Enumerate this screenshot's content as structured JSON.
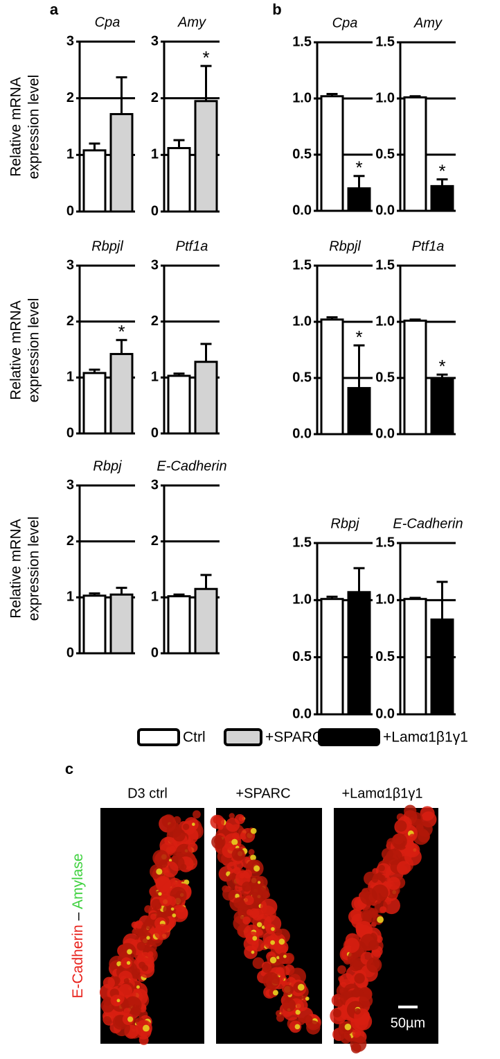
{
  "panel_labels": [
    "a",
    "b",
    "c"
  ],
  "ylabel": [
    "Relative mRNA",
    "expression level"
  ],
  "chart_data": [
    {
      "type": "bar",
      "title": "Cpa",
      "values": [
        1.08,
        1.72
      ],
      "errors": [
        0.12,
        0.65
      ],
      "annotations": [
        null,
        null
      ],
      "colors": [
        "#ffffff",
        "#d3d3d3"
      ],
      "ylim": [
        0,
        3
      ],
      "yticks": [
        0,
        1,
        2,
        3
      ],
      "grid": true
    },
    {
      "type": "bar",
      "title": "Amy",
      "values": [
        1.12,
        1.95
      ],
      "errors": [
        0.14,
        0.62
      ],
      "annotations": [
        null,
        "*"
      ],
      "colors": [
        "#ffffff",
        "#d3d3d3"
      ],
      "ylim": [
        0,
        3
      ],
      "yticks": [
        0,
        1,
        2,
        3
      ],
      "grid": true
    },
    {
      "type": "bar",
      "title": "Rbpjl",
      "values": [
        1.08,
        1.42
      ],
      "errors": [
        0.06,
        0.25
      ],
      "annotations": [
        null,
        "*"
      ],
      "colors": [
        "#ffffff",
        "#d3d3d3"
      ],
      "ylim": [
        0,
        3
      ],
      "yticks": [
        0,
        1,
        2,
        3
      ],
      "grid": true
    },
    {
      "type": "bar",
      "title": "Ptf1a",
      "values": [
        1.03,
        1.28
      ],
      "errors": [
        0.04,
        0.32
      ],
      "annotations": [
        null,
        null
      ],
      "colors": [
        "#ffffff",
        "#d3d3d3"
      ],
      "ylim": [
        0,
        3
      ],
      "yticks": [
        0,
        1,
        2,
        3
      ],
      "grid": true
    },
    {
      "type": "bar",
      "title": "Rbpj",
      "values": [
        1.03,
        1.05
      ],
      "errors": [
        0.04,
        0.12
      ],
      "annotations": [
        null,
        null
      ],
      "colors": [
        "#ffffff",
        "#d3d3d3"
      ],
      "ylim": [
        0,
        3
      ],
      "yticks": [
        0,
        1,
        2,
        3
      ],
      "grid": true
    },
    {
      "type": "bar",
      "title": "E-Cadherin",
      "values": [
        1.02,
        1.15
      ],
      "errors": [
        0.03,
        0.25
      ],
      "annotations": [
        null,
        null
      ],
      "colors": [
        "#ffffff",
        "#d3d3d3"
      ],
      "ylim": [
        0,
        3
      ],
      "yticks": [
        0,
        1,
        2,
        3
      ],
      "grid": true
    },
    {
      "type": "bar",
      "title": "Cpa",
      "values": [
        1.02,
        0.2
      ],
      "errors": [
        0.02,
        0.11
      ],
      "annotations": [
        null,
        "*"
      ],
      "colors": [
        "#ffffff",
        "#000000"
      ],
      "ylim": [
        0,
        1.5
      ],
      "yticks": [
        {
          "value": 0,
          "label": "0.0"
        },
        0.5,
        {
          "value": 1,
          "label": "1.0"
        },
        1.5
      ],
      "grid": true
    },
    {
      "type": "bar",
      "title": "Amy",
      "values": [
        1.01,
        0.22
      ],
      "errors": [
        0.01,
        0.06
      ],
      "annotations": [
        null,
        "*"
      ],
      "colors": [
        "#ffffff",
        "#000000"
      ],
      "ylim": [
        0,
        1.5
      ],
      "yticks": [
        {
          "value": 0,
          "label": "0.0"
        },
        0.5,
        {
          "value": 1,
          "label": "1.0"
        },
        1.5
      ],
      "grid": true
    },
    {
      "type": "bar",
      "title": "Rbpjl",
      "values": [
        1.02,
        0.41
      ],
      "errors": [
        0.02,
        0.38
      ],
      "annotations": [
        null,
        "*"
      ],
      "colors": [
        "#ffffff",
        "#000000"
      ],
      "ylim": [
        0,
        1.5
      ],
      "yticks": [
        {
          "value": 0,
          "label": "0.0"
        },
        0.5,
        {
          "value": 1,
          "label": "1.0"
        },
        1.5
      ],
      "grid": true
    },
    {
      "type": "bar",
      "title": "Ptf1a",
      "values": [
        1.01,
        0.49
      ],
      "errors": [
        0.01,
        0.04
      ],
      "annotations": [
        null,
        "*"
      ],
      "colors": [
        "#ffffff",
        "#000000"
      ],
      "ylim": [
        0,
        1.5
      ],
      "yticks": [
        {
          "value": 0,
          "label": "0.0"
        },
        0.5,
        {
          "value": 1,
          "label": "1.0"
        },
        1.5
      ],
      "grid": true
    },
    {
      "type": "bar",
      "title": "Rbpj",
      "values": [
        1.01,
        1.07
      ],
      "errors": [
        0.02,
        0.21
      ],
      "annotations": [
        null,
        null
      ],
      "colors": [
        "#ffffff",
        "#000000"
      ],
      "ylim": [
        0,
        1.5
      ],
      "yticks": [
        {
          "value": 0,
          "label": "0.0"
        },
        0.5,
        {
          "value": 1,
          "label": "1.0"
        },
        1.5
      ],
      "grid": true
    },
    {
      "type": "bar",
      "title": "E-Cadherin",
      "values": [
        1.01,
        0.83
      ],
      "errors": [
        0.01,
        0.33
      ],
      "annotations": [
        null,
        null
      ],
      "colors": [
        "#ffffff",
        "#000000"
      ],
      "ylim": [
        0,
        1.5
      ],
      "yticks": [
        {
          "value": 0,
          "label": "0.0"
        },
        0.5,
        {
          "value": 1,
          "label": "1.0"
        },
        1.5
      ],
      "grid": true
    }
  ],
  "legend": [
    {
      "name": "Ctrl",
      "color": "#ffffff"
    },
    {
      "name": "+SPARC",
      "color": "#d3d3d3"
    },
    {
      "name": "+Lamα1β1γ1",
      "color": "#000000"
    }
  ],
  "images": {
    "titles": [
      "D3 ctrl",
      "+SPARC",
      "+Lamα1β1γ1"
    ],
    "stain_label": [
      "E-Cadherin",
      "–",
      "Amylase"
    ],
    "scale_bar": "50µm"
  }
}
